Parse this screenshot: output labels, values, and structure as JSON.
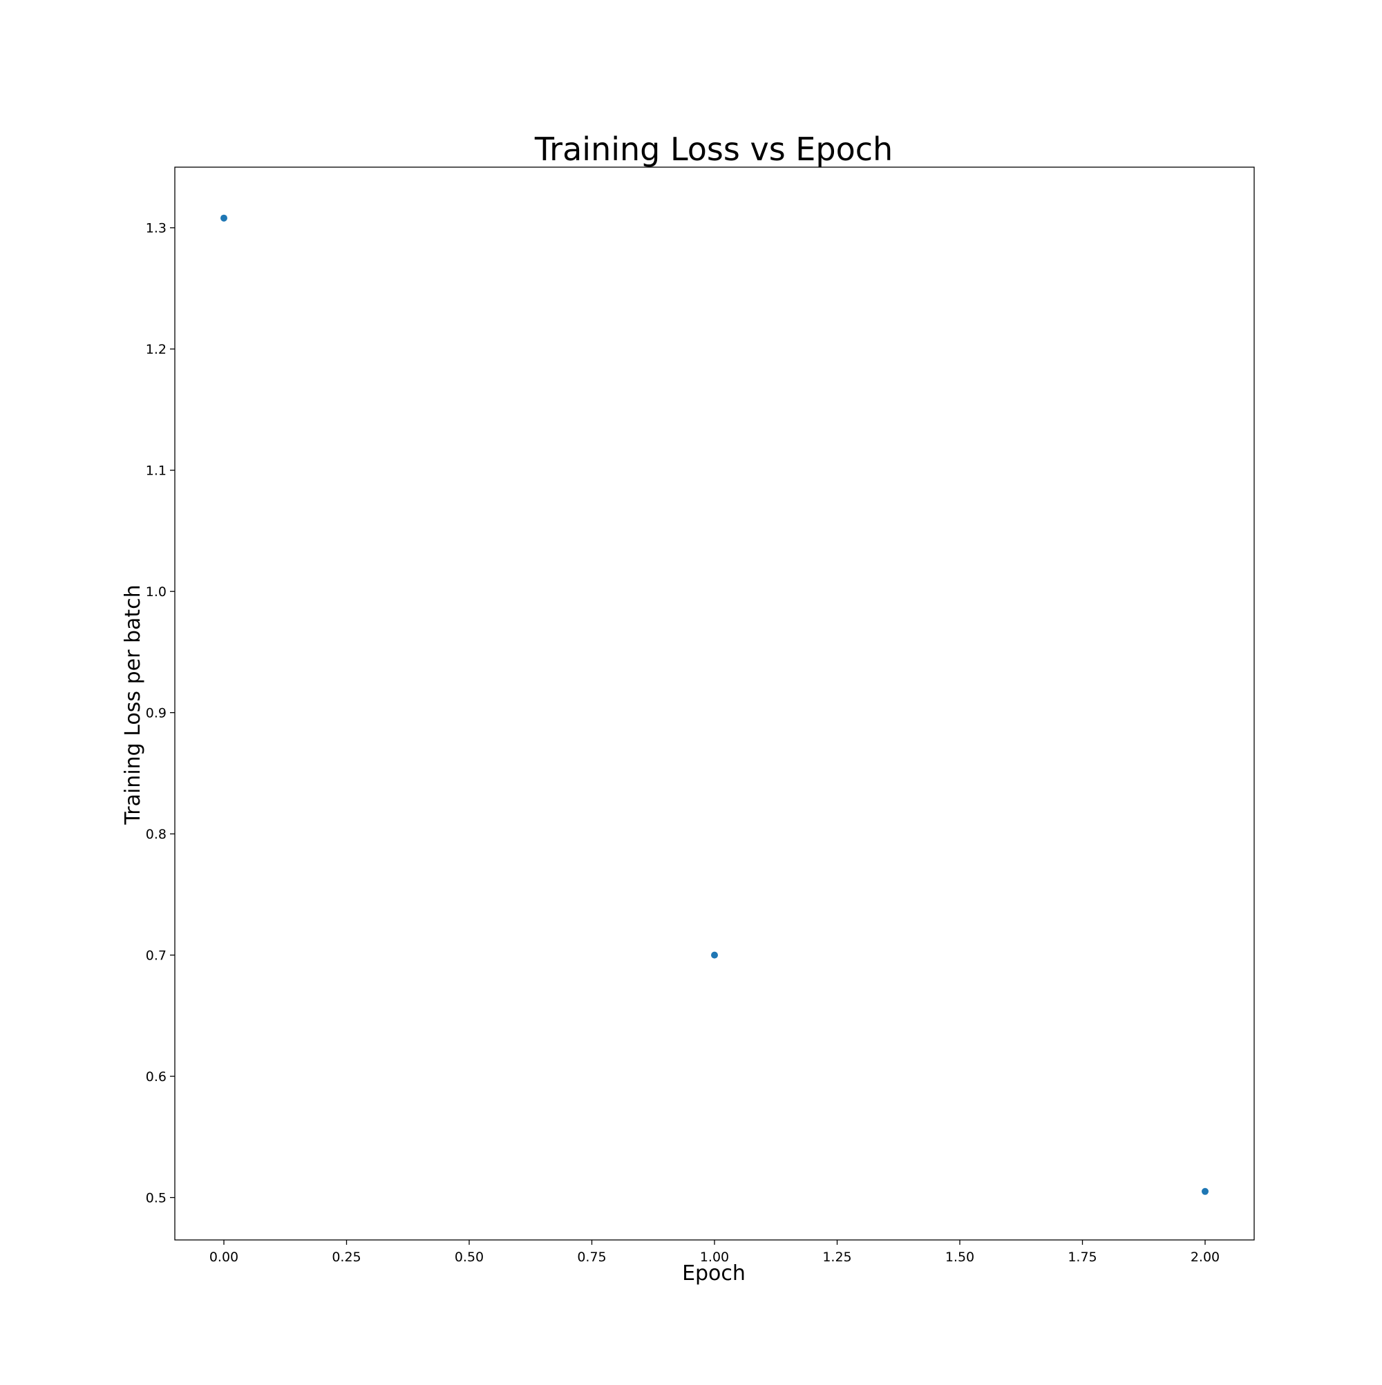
{
  "chart_data": {
    "type": "scatter",
    "title": "Training Loss vs Epoch",
    "xlabel": "Epoch",
    "ylabel": "Training Loss per batch",
    "xlim": [
      -0.1,
      2.1
    ],
    "ylim": [
      0.465,
      1.35
    ],
    "x_ticks": [
      0.0,
      0.25,
      0.5,
      0.75,
      1.0,
      1.25,
      1.5,
      1.75,
      2.0
    ],
    "x_tick_labels": [
      "0.00",
      "0.25",
      "0.50",
      "0.75",
      "1.00",
      "1.25",
      "1.50",
      "1.75",
      "2.00"
    ],
    "y_ticks": [
      0.5,
      0.6,
      0.7,
      0.8,
      0.9,
      1.0,
      1.1,
      1.2,
      1.3
    ],
    "y_tick_labels": [
      "0.5",
      "0.6",
      "0.7",
      "0.8",
      "0.9",
      "1.0",
      "1.1",
      "1.2",
      "1.3"
    ],
    "grid": false,
    "series": [
      {
        "x": [
          0,
          1,
          2
        ],
        "y": [
          1.308,
          0.7,
          0.505
        ],
        "color": "#1f77b4"
      }
    ]
  }
}
